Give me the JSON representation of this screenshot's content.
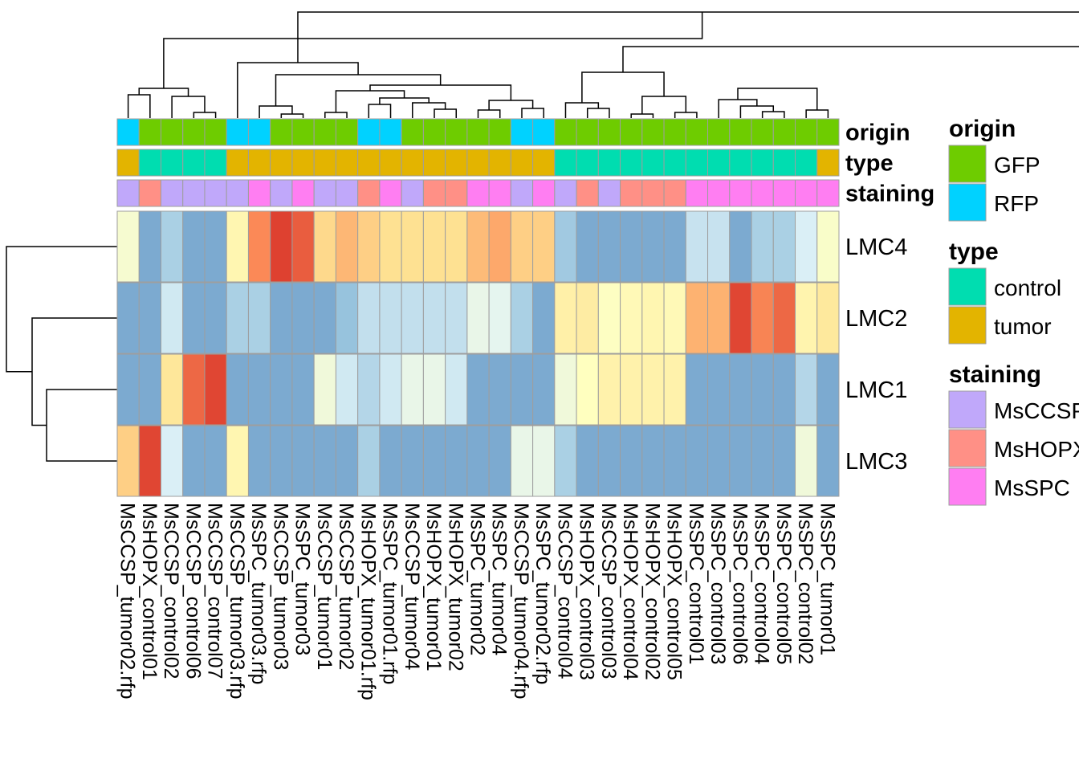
{
  "chart_data": {
    "type": "heatmap",
    "columns": [
      "MsCCSP_tumor02.rfp",
      "MsHOPX_control01",
      "MsCCSP_control02",
      "MsCCSP_control06",
      "MsCCSP_control07",
      "MsCCSP_tumor03.rfp",
      "MsSPC_tumor03.rfp",
      "MsCCSP_tumor03",
      "MsSPC_tumor03",
      "MsCCSP_tumor01",
      "MsCCSP_tumor02",
      "MsHOPX_tumor01.rfp",
      "MsSPC_tumor01.rfp",
      "MsCCSP_tumor04",
      "MsHOPX_tumor01",
      "MsHOPX_tumor02",
      "MsSPC_tumor02",
      "MsSPC_tumor04",
      "MsCCSP_tumor04.rfp",
      "MsSPC_tumor02.rfp",
      "MsCCSP_control04",
      "MsHOPX_control03",
      "MsCCSP_control03",
      "MsHOPX_control04",
      "MsHOPX_control02",
      "MsHOPX_control05",
      "MsSPC_control01",
      "MsSPC_control03",
      "MsSPC_control06",
      "MsSPC_control04",
      "MsSPC_control05",
      "MsSPC_control02",
      "MsSPC_tumor01"
    ],
    "rows": [
      "LMC4",
      "LMC2",
      "LMC1",
      "LMC3"
    ],
    "values": [
      [
        0.45,
        0.12,
        0.22,
        0.12,
        0.12,
        0.55,
        0.84,
        0.97,
        0.92,
        0.68,
        0.75,
        0.7,
        0.66,
        0.66,
        0.66,
        0.66,
        0.74,
        0.78,
        0.7,
        0.7,
        0.2,
        0.12,
        0.12,
        0.12,
        0.12,
        0.12,
        0.28,
        0.28,
        0.12,
        0.22,
        0.22,
        0.32,
        0.47
      ],
      [
        0.12,
        0.12,
        0.3,
        0.12,
        0.12,
        0.22,
        0.22,
        0.12,
        0.12,
        0.12,
        0.18,
        0.27,
        0.27,
        0.27,
        0.27,
        0.27,
        0.38,
        0.36,
        0.22,
        0.12,
        0.58,
        0.6,
        0.49,
        0.53,
        0.55,
        0.53,
        0.76,
        0.76,
        0.96,
        0.85,
        0.9,
        0.56,
        0.62
      ],
      [
        0.12,
        0.12,
        0.63,
        0.9,
        0.96,
        0.12,
        0.12,
        0.12,
        0.12,
        0.42,
        0.3,
        0.24,
        0.3,
        0.38,
        0.38,
        0.3,
        0.12,
        0.12,
        0.12,
        0.12,
        0.42,
        0.5,
        0.57,
        0.57,
        0.57,
        0.57,
        0.12,
        0.12,
        0.12,
        0.12,
        0.12,
        0.24,
        0.12
      ],
      [
        0.7,
        0.96,
        0.32,
        0.12,
        0.12,
        0.55,
        0.12,
        0.12,
        0.12,
        0.12,
        0.12,
        0.22,
        0.12,
        0.12,
        0.12,
        0.12,
        0.12,
        0.12,
        0.38,
        0.38,
        0.22,
        0.12,
        0.12,
        0.12,
        0.12,
        0.12,
        0.12,
        0.12,
        0.12,
        0.12,
        0.12,
        0.42,
        0.12
      ]
    ],
    "color_scale": [
      "#4575b4",
      "#91bfdb",
      "#e0f3f8",
      "#ffffbf",
      "#fee090",
      "#fc8d59",
      "#d73027"
    ],
    "annotations": {
      "origin": [
        "RFP",
        "GFP",
        "GFP",
        "GFP",
        "GFP",
        "RFP",
        "RFP",
        "GFP",
        "GFP",
        "GFP",
        "GFP",
        "RFP",
        "RFP",
        "GFP",
        "GFP",
        "GFP",
        "GFP",
        "GFP",
        "RFP",
        "RFP",
        "GFP",
        "GFP",
        "GFP",
        "GFP",
        "GFP",
        "GFP",
        "GFP",
        "GFP",
        "GFP",
        "GFP",
        "GFP",
        "GFP",
        "GFP"
      ],
      "type": [
        "tumor",
        "control",
        "control",
        "control",
        "control",
        "tumor",
        "tumor",
        "tumor",
        "tumor",
        "tumor",
        "tumor",
        "tumor",
        "tumor",
        "tumor",
        "tumor",
        "tumor",
        "tumor",
        "tumor",
        "tumor",
        "tumor",
        "control",
        "control",
        "control",
        "control",
        "control",
        "control",
        "control",
        "control",
        "control",
        "control",
        "control",
        "control",
        "tumor"
      ],
      "staining": [
        "MsCCSP",
        "MsHOPX",
        "MsCCSP",
        "MsCCSP",
        "MsCCSP",
        "MsCCSP",
        "MsSPC",
        "MsCCSP",
        "MsSPC",
        "MsCCSP",
        "MsCCSP",
        "MsHOPX",
        "MsSPC",
        "MsCCSP",
        "MsHOPX",
        "MsHOPX",
        "MsSPC",
        "MsSPC",
        "MsCCSP",
        "MsSPC",
        "MsCCSP",
        "MsHOPX",
        "MsCCSP",
        "MsHOPX",
        "MsHOPX",
        "MsHOPX",
        "MsSPC",
        "MsSPC",
        "MsSPC",
        "MsSPC",
        "MsSPC",
        "MsSPC",
        "MsSPC"
      ]
    },
    "annotation_labels": [
      "origin",
      "type",
      "staining"
    ],
    "legend": [
      {
        "title": "origin",
        "entries": [
          {
            "label": "GFP",
            "color": "#6ecc00"
          },
          {
            "label": "RFP",
            "color": "#00d2ff"
          }
        ]
      },
      {
        "title": "type",
        "entries": [
          {
            "label": "control",
            "color": "#00ddb0"
          },
          {
            "label": "tumor",
            "color": "#e3b400"
          }
        ]
      },
      {
        "title": "staining",
        "entries": [
          {
            "label": "MsCCSP",
            "color": "#c0a8fa"
          },
          {
            "label": "MsHOPX",
            "color": "#ff9086"
          },
          {
            "label": "MsSPC",
            "color": "#ff7ef2"
          }
        ]
      }
    ],
    "dendrogram": {
      "columns": true,
      "rows": true
    },
    "grid": true
  }
}
